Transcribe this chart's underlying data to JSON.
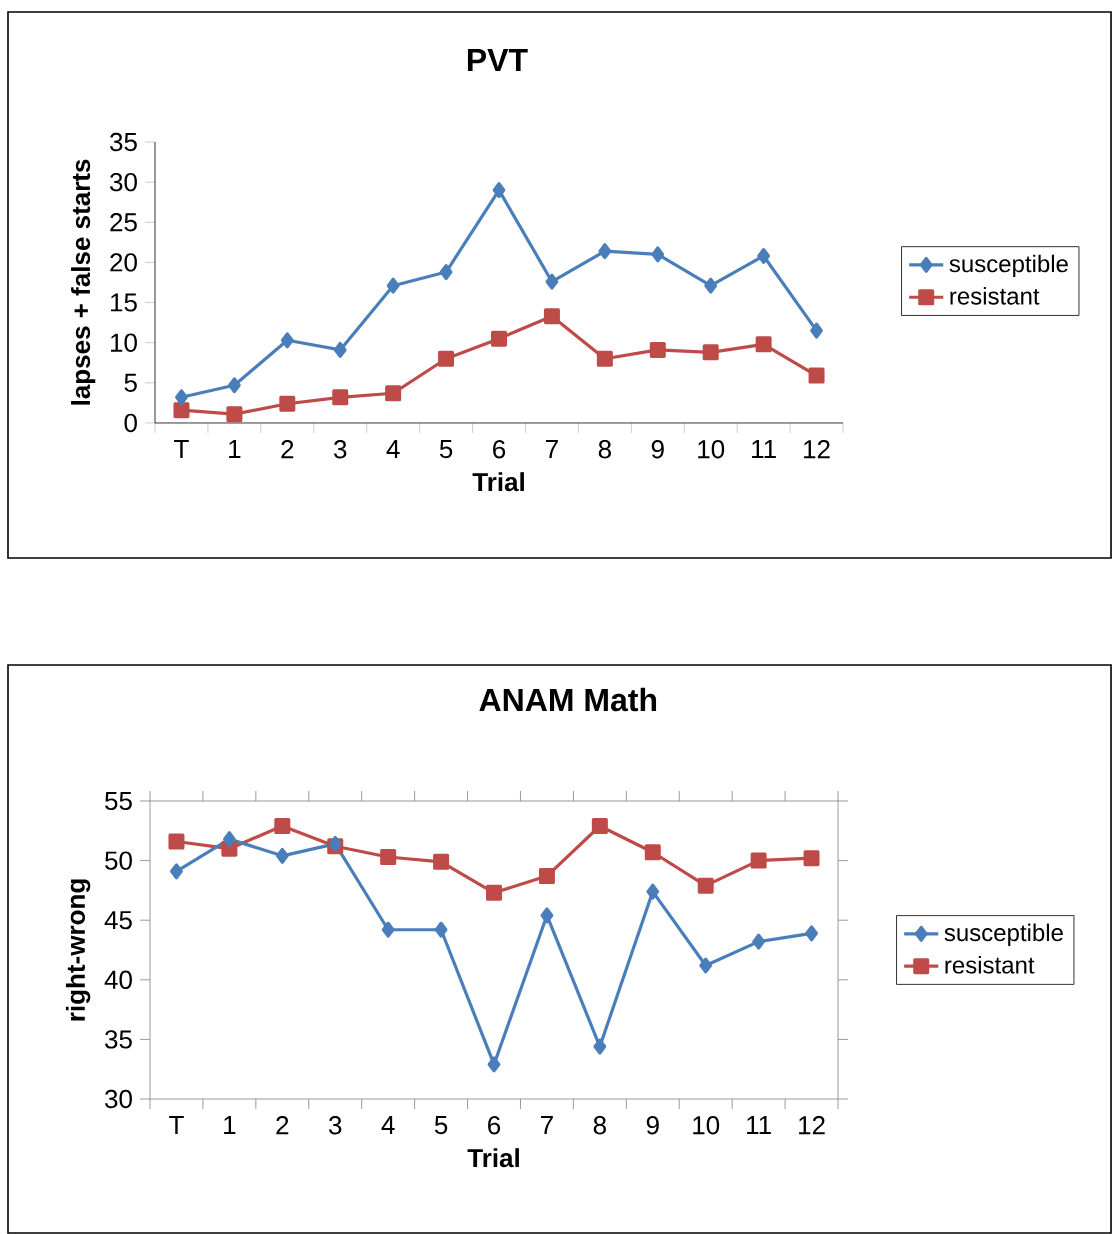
{
  "chart_data": [
    {
      "type": "line",
      "title": "PVT",
      "xlabel": "Trial",
      "ylabel": "lapses + false starts",
      "categories": [
        "T",
        "1",
        "2",
        "3",
        "4",
        "5",
        "6",
        "7",
        "8",
        "9",
        "10",
        "11",
        "12"
      ],
      "ylim": [
        0,
        35
      ],
      "yticks": [
        0,
        5,
        10,
        15,
        20,
        25,
        30,
        35
      ],
      "legend": "right",
      "series": [
        {
          "name": "susceptible",
          "color": "#4a7ebb",
          "marker": "diamond",
          "values": [
            3.2,
            4.7,
            10.3,
            9.1,
            17.1,
            18.8,
            29.0,
            17.6,
            21.4,
            21.0,
            17.1,
            20.8,
            11.5
          ]
        },
        {
          "name": "resistant",
          "color": "#be4b48",
          "marker": "square",
          "values": [
            1.6,
            1.1,
            2.4,
            3.2,
            3.7,
            8.0,
            10.5,
            13.3,
            8.0,
            9.1,
            8.8,
            9.8,
            5.9
          ]
        }
      ]
    },
    {
      "type": "line",
      "title": "ANAM  Math",
      "xlabel": "Trial",
      "ylabel": "right-wrong",
      "categories": [
        "T",
        "1",
        "2",
        "3",
        "4",
        "5",
        "6",
        "7",
        "8",
        "9",
        "10",
        "11",
        "12"
      ],
      "ylim": [
        30,
        55
      ],
      "yticks": [
        30,
        35,
        40,
        45,
        50,
        55
      ],
      "legend": "right",
      "series": [
        {
          "name": "susceptible",
          "color": "#4a7ebb",
          "marker": "diamond",
          "values": [
            49.1,
            51.8,
            50.4,
            51.4,
            44.2,
            44.2,
            32.9,
            45.4,
            34.4,
            47.4,
            41.2,
            43.2,
            43.9
          ]
        },
        {
          "name": "resistant",
          "color": "#be4b48",
          "marker": "square",
          "values": [
            51.6,
            51.0,
            52.9,
            51.2,
            50.3,
            49.9,
            47.3,
            48.7,
            52.9,
            50.7,
            47.9,
            50.0,
            50.2
          ]
        }
      ]
    }
  ]
}
